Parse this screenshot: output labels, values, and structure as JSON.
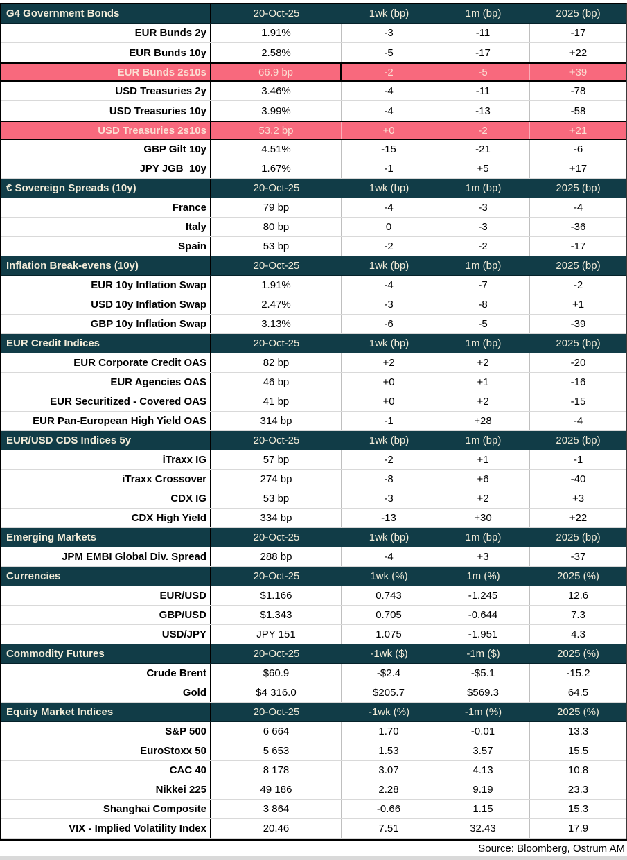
{
  "colors": {
    "section_header_bg": "#113c47",
    "section_header_text": "#f2ecd9",
    "section_title_text": "#ffffff",
    "highlight_row_bg": "#f8697d",
    "highlight_row_text": "#fbdfd3",
    "grid_line": "#bfbfbf",
    "row_line": "#d9d9d9"
  },
  "footer": {
    "source": "Source: Bloomberg, Ostrum AM"
  },
  "sections": [
    {
      "title": "G4 Government Bonds",
      "headers": [
        "20-Oct-25",
        "1wk (bp)",
        "1m (bp)",
        "2025 (bp)"
      ],
      "rows": [
        {
          "label": "EUR Bunds 2y",
          "values": [
            "1.91%",
            "-3",
            "-11",
            "-17"
          ]
        },
        {
          "label": "EUR Bunds 10y",
          "values": [
            "2.58%",
            "-5",
            "-17",
            "+22"
          ]
        },
        {
          "label": "EUR Bunds 2s10s",
          "values": [
            "66.9 bp",
            "-2",
            "-5",
            "+39"
          ],
          "highlight": true,
          "cursor_cell": 0
        },
        {
          "label": "USD Treasuries 2y",
          "values": [
            "3.46%",
            "-4",
            "-11",
            "-78"
          ]
        },
        {
          "label": "USD Treasuries 10y",
          "values": [
            "3.99%",
            "-4",
            "-13",
            "-58"
          ]
        },
        {
          "label": "USD Treasuries 2s10s",
          "values": [
            "53.2 bp",
            "+0",
            "-2",
            "+21"
          ],
          "highlight": true
        },
        {
          "label": "GBP Gilt 10y",
          "values": [
            "4.51%",
            "-15",
            "-21",
            "-6"
          ]
        },
        {
          "label": "JPY JGB  10y",
          "values": [
            "1.67%",
            "-1",
            "+5",
            "+17"
          ]
        }
      ]
    },
    {
      "title": "€ Sovereign Spreads (10y)",
      "headers": [
        "20-Oct-25",
        "1wk (bp)",
        "1m (bp)",
        "2025 (bp)"
      ],
      "rows": [
        {
          "label": "France",
          "values": [
            "79 bp",
            "-4",
            "-3",
            "-4"
          ]
        },
        {
          "label": "Italy",
          "values": [
            "80 bp",
            "0",
            "-3",
            "-36"
          ]
        },
        {
          "label": "Spain",
          "values": [
            "53 bp",
            "-2",
            "-2",
            "-17"
          ]
        }
      ]
    },
    {
      "title": "Inflation Break-evens (10y)",
      "headers": [
        "20-Oct-25",
        "1wk (bp)",
        "1m (bp)",
        "2025 (bp)"
      ],
      "rows": [
        {
          "label": "EUR 10y Inflation Swap",
          "values": [
            "1.91%",
            "-4",
            "-7",
            "-2"
          ]
        },
        {
          "label": "USD 10y Inflation Swap",
          "values": [
            "2.47%",
            "-3",
            "-8",
            "+1"
          ]
        },
        {
          "label": "GBP 10y Inflation Swap",
          "values": [
            "3.13%",
            "-6",
            "-5",
            "-39"
          ]
        }
      ]
    },
    {
      "title": "EUR Credit Indices",
      "headers": [
        "20-Oct-25",
        "1wk (bp)",
        "1m (bp)",
        "2025 (bp)"
      ],
      "rows": [
        {
          "label": "EUR Corporate Credit OAS",
          "values": [
            "82 bp",
            "+2",
            "+2",
            "-20"
          ]
        },
        {
          "label": "EUR Agencies OAS",
          "values": [
            "46 bp",
            "+0",
            "+1",
            "-16"
          ]
        },
        {
          "label": "EUR Securitized - Covered OAS",
          "values": [
            "41 bp",
            "+0",
            "+2",
            "-15"
          ]
        },
        {
          "label": "EUR Pan-European High Yield OAS",
          "values": [
            "314 bp",
            "-1",
            "+28",
            "-4"
          ]
        }
      ]
    },
    {
      "title": "EUR/USD CDS Indices 5y",
      "headers": [
        "20-Oct-25",
        "1wk (bp)",
        "1m (bp)",
        "2025 (bp)"
      ],
      "rows": [
        {
          "label": "iTraxx IG",
          "values": [
            "57 bp",
            "-2",
            "+1",
            "-1"
          ]
        },
        {
          "label": "iTraxx Crossover",
          "values": [
            "274 bp",
            "-8",
            "+6",
            "-40"
          ]
        },
        {
          "label": "CDX IG",
          "values": [
            "53 bp",
            "-3",
            "+2",
            "+3"
          ]
        },
        {
          "label": "CDX High Yield",
          "values": [
            "334 bp",
            "-13",
            "+30",
            "+22"
          ]
        }
      ]
    },
    {
      "title": "Emerging Markets",
      "headers": [
        "20-Oct-25",
        "1wk (bp)",
        "1m (bp)",
        "2025 (bp)"
      ],
      "rows": [
        {
          "label": "JPM EMBI Global Div. Spread",
          "values": [
            "288 bp",
            "-4",
            "+3",
            "-37"
          ]
        }
      ]
    },
    {
      "title": "Currencies",
      "headers": [
        "20-Oct-25",
        "1wk (%)",
        "1m (%)",
        "2025 (%)"
      ],
      "rows": [
        {
          "label": "EUR/USD",
          "values": [
            "$1.166",
            "0.743",
            "-1.245",
            "12.6"
          ]
        },
        {
          "label": "GBP/USD",
          "values": [
            "$1.343",
            "0.705",
            "-0.644",
            "7.3"
          ]
        },
        {
          "label": "USD/JPY",
          "values": [
            "JPY 151",
            "1.075",
            "-1.951",
            "4.3"
          ]
        }
      ]
    },
    {
      "title": "Commodity Futures",
      "headers": [
        "20-Oct-25",
        "-1wk ($)",
        "-1m ($)",
        "2025 (%)"
      ],
      "rows": [
        {
          "label": "Crude Brent",
          "values": [
            "$60.9",
            "-$2.4",
            "-$5.1",
            "-15.2"
          ]
        },
        {
          "label": "Gold",
          "values": [
            "$4 316.0",
            "$205.7",
            "$569.3",
            "64.5"
          ]
        }
      ]
    },
    {
      "title": "Equity Market Indices",
      "headers": [
        "20-Oct-25",
        "-1wk (%)",
        "-1m (%)",
        "2025 (%)"
      ],
      "rows": [
        {
          "label": "S&P 500",
          "values": [
            "6 664",
            "1.70",
            "-0.01",
            "13.3"
          ]
        },
        {
          "label": "EuroStoxx 50",
          "values": [
            "5 653",
            "1.53",
            "3.57",
            "15.5"
          ]
        },
        {
          "label": "CAC 40",
          "values": [
            "8 178",
            "3.07",
            "4.13",
            "10.8"
          ]
        },
        {
          "label": "Nikkei 225",
          "values": [
            "49 186",
            "2.28",
            "9.19",
            "23.3"
          ]
        },
        {
          "label": "Shanghai Composite",
          "values": [
            "3 864",
            "-0.66",
            "1.15",
            "15.3"
          ]
        },
        {
          "label": "VIX - Implied Volatility Index",
          "values": [
            "20.46",
            "7.51",
            "32.43",
            "17.9"
          ]
        }
      ]
    }
  ]
}
